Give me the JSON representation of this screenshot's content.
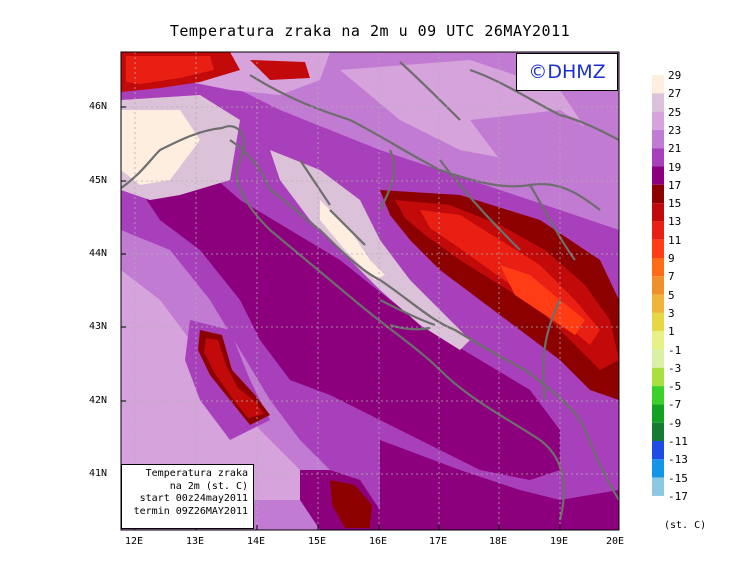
{
  "title": "Temperatura zraka na 2m u 09 UTC 26MAY2011",
  "copyright": "©DHMZ",
  "info": [
    "Temperatura zraka",
    "na 2m (st. C)",
    "start 00z24may2011",
    "termin 09Z26MAY2011"
  ],
  "legend": {
    "unit": "(st. C)",
    "levels": [
      "29",
      "27",
      "25",
      "23",
      "21",
      "19",
      "17",
      "15",
      "13",
      "11",
      "9",
      "7",
      "5",
      "3",
      "1",
      "-1",
      "-3",
      "-5",
      "-7",
      "-9",
      "-11",
      "-13",
      "-15",
      "-17"
    ],
    "colors": [
      "#fdeee0",
      "#dcc2d8",
      "#d7a3dd",
      "#c27bd3",
      "#a83fbb",
      "#8c007e",
      "#8c0000",
      "#c20a0a",
      "#ea1f14",
      "#ff3c14",
      "#ff6b14",
      "#f0902a",
      "#eeb53a",
      "#e6d844",
      "#e8f088",
      "#d8f0a8",
      "#a8e040",
      "#3cd02c",
      "#14a020",
      "#147a34",
      "#1e4ae8",
      "#1496e8",
      "#8cc8e0",
      "#e8fafc"
    ]
  },
  "lat_labels": [
    "46N",
    "45N",
    "44N",
    "43N",
    "42N",
    "41N"
  ],
  "lon_labels": [
    "12E",
    "13E",
    "14E",
    "15E",
    "16E",
    "17E",
    "18E",
    "19E",
    "20E"
  ]
}
